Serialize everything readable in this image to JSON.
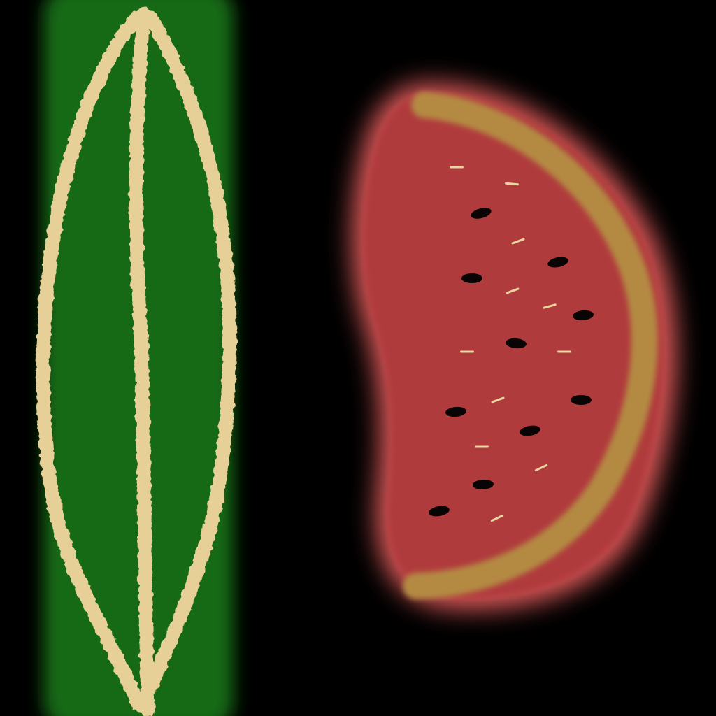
{
  "scene": {
    "background_color": "#000000",
    "objects": [
      {
        "name": "watermelon-rind-stripes",
        "kind": "watermelon-rind",
        "body_color": "#166b16",
        "stripe_color": "#e6d098",
        "stripe_count": 3
      },
      {
        "name": "watermelon-slice",
        "kind": "watermelon-slice",
        "flesh_color": "#b03a3e",
        "glow_color": "#e05a5a",
        "rind_color": "#b48a43",
        "black_seed_color": "#0a0505",
        "black_seed_count": 11,
        "white_seed_color": "#e8d5a0",
        "white_seed_count": 12
      }
    ]
  }
}
